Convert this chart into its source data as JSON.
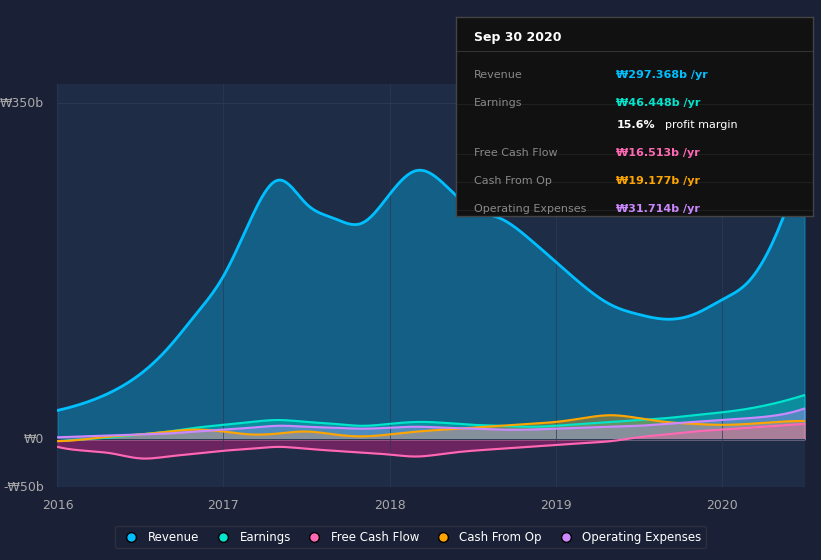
{
  "bg_color": "#1a2035",
  "plot_bg_color": "#1e2d45",
  "grid_color": "#2a3a55",
  "ylim": [
    -50,
    370
  ],
  "ytick_labels": [
    "₩0",
    "₩350b"
  ],
  "ylabel_neg": "-₩50b",
  "xlabel_ticks": [
    "2016",
    "2017",
    "2018",
    "2019",
    "2020"
  ],
  "legend_items": [
    "Revenue",
    "Earnings",
    "Free Cash Flow",
    "Cash From Op",
    "Operating Expenses"
  ],
  "legend_colors": [
    "#00bfff",
    "#00e5cc",
    "#ff69b4",
    "#ffa500",
    "#cc88ff"
  ],
  "info_box": {
    "title": "Sep 30 2020",
    "rows": [
      {
        "label": "Revenue",
        "value": "₩297.368b /yr",
        "value_color": "#00bfff"
      },
      {
        "label": "Earnings",
        "value": "₩46.448b /yr",
        "value_color": "#00e5cc"
      },
      {
        "label": "",
        "value": "15.6% profit margin",
        "value_color": "#ffffff"
      },
      {
        "label": "Free Cash Flow",
        "value": "₩16.513b /yr",
        "value_color": "#ff69b4"
      },
      {
        "label": "Cash From Op",
        "value": "₩19.177b /yr",
        "value_color": "#ffa500"
      },
      {
        "label": "Operating Expenses",
        "value": "₩31.714b /yr",
        "value_color": "#cc88ff"
      }
    ]
  },
  "revenue": [
    30,
    38,
    50,
    68,
    95,
    130,
    170,
    230,
    270,
    245,
    230,
    225,
    255,
    280,
    265,
    240,
    230,
    210,
    185,
    160,
    140,
    130,
    125,
    130,
    145,
    165,
    215,
    297
  ],
  "earnings": [
    -2,
    0,
    2,
    5,
    8,
    12,
    15,
    18,
    20,
    18,
    16,
    14,
    16,
    18,
    17,
    15,
    14,
    13,
    14,
    16,
    18,
    20,
    22,
    25,
    28,
    32,
    38,
    46
  ],
  "free_cash_flow": [
    -8,
    -12,
    -15,
    -20,
    -18,
    -15,
    -12,
    -10,
    -8,
    -10,
    -12,
    -14,
    -16,
    -18,
    -15,
    -12,
    -10,
    -8,
    -6,
    -4,
    -2,
    2,
    5,
    8,
    10,
    12,
    14,
    16
  ],
  "cash_from_op": [
    -2,
    0,
    3,
    5,
    8,
    10,
    8,
    5,
    6,
    8,
    5,
    3,
    5,
    8,
    10,
    12,
    14,
    16,
    18,
    22,
    25,
    22,
    18,
    16,
    15,
    16,
    18,
    19
  ],
  "operating_expenses": [
    2,
    3,
    4,
    5,
    6,
    8,
    10,
    12,
    14,
    13,
    12,
    11,
    12,
    13,
    12,
    11,
    10,
    10,
    11,
    12,
    13,
    14,
    16,
    18,
    20,
    22,
    25,
    32
  ],
  "n_points": 28
}
